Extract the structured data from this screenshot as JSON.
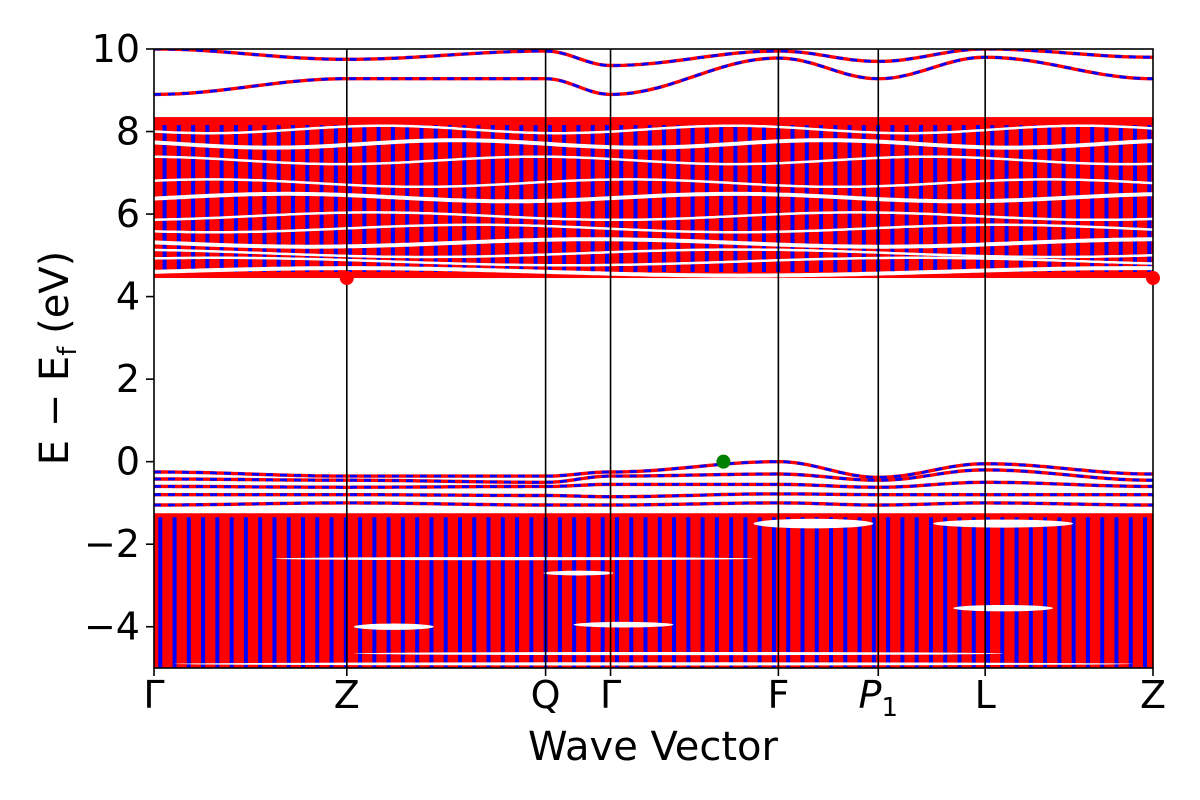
{
  "chart_data": {
    "type": "line",
    "xlabel": "Wave Vector",
    "ylabel_parts": {
      "main": "E − E",
      "sub": "f",
      "unit": " (eV)"
    },
    "ylim": [
      -5,
      10
    ],
    "yticks": [
      10,
      8,
      6,
      4,
      2,
      0,
      -2,
      -4
    ],
    "ytick_labels": [
      "10",
      "8",
      "6",
      "4",
      "2",
      "0",
      "−2",
      "−4"
    ],
    "kpoints": [
      {
        "label": "Γ",
        "x": 0.0
      },
      {
        "label": "Z",
        "x": 0.193
      },
      {
        "label": "Q",
        "x": 0.392
      },
      {
        "label": "Γ",
        "x": 0.457
      },
      {
        "label": "F",
        "x": 0.625
      },
      {
        "label": "P",
        "sub": "1",
        "x": 0.725
      },
      {
        "label": "L",
        "x": 0.832
      },
      {
        "label": "Z",
        "x": 1.0
      }
    ],
    "series": [
      {
        "color": "#ff0000",
        "style": "solid"
      },
      {
        "color": "#0000ff",
        "style": "dashed"
      }
    ],
    "valence_band_top": 0.0,
    "conduction_band_bottom": 4.45,
    "conduction_band_top": 8.35,
    "valence_dense_top": -1.25,
    "gap_upper_bands": [
      {
        "base": 8.9,
        "amp": 0.85,
        "nodes": [
          8.9,
          9.28,
          9.28,
          8.9,
          9.78,
          9.28,
          9.8,
          9.28
        ]
      },
      {
        "base": 10.0,
        "amp": 0.3,
        "nodes": [
          10.0,
          9.75,
          9.95,
          9.6,
          9.95,
          9.7,
          10.0,
          9.8
        ]
      }
    ],
    "valence_bands": [
      {
        "nodes": [
          -0.25,
          -0.35,
          -0.35,
          -0.25,
          0.0,
          -0.38,
          -0.05,
          -0.3
        ]
      },
      {
        "nodes": [
          -0.42,
          -0.45,
          -0.5,
          -0.35,
          -0.3,
          -0.45,
          -0.2,
          -0.45
        ]
      },
      {
        "nodes": [
          -0.6,
          -0.62,
          -0.6,
          -0.55,
          -0.55,
          -0.62,
          -0.5,
          -0.6
        ]
      },
      {
        "nodes": [
          -0.8,
          -0.8,
          -0.82,
          -0.85,
          -0.78,
          -0.8,
          -0.8,
          -0.8
        ]
      },
      {
        "nodes": [
          -1.05,
          -1.0,
          -1.05,
          -1.05,
          -1.0,
          -1.05,
          -1.0,
          -1.05
        ]
      }
    ],
    "markers": [
      {
        "x": 0.193,
        "y": 4.45,
        "color": "#ff0000",
        "role": "CBM"
      },
      {
        "x": 1.0,
        "y": 4.45,
        "color": "#ff0000",
        "role": "CBM"
      },
      {
        "x": 0.57,
        "y": 0.0,
        "color": "#008000",
        "role": "VBM"
      }
    ]
  }
}
